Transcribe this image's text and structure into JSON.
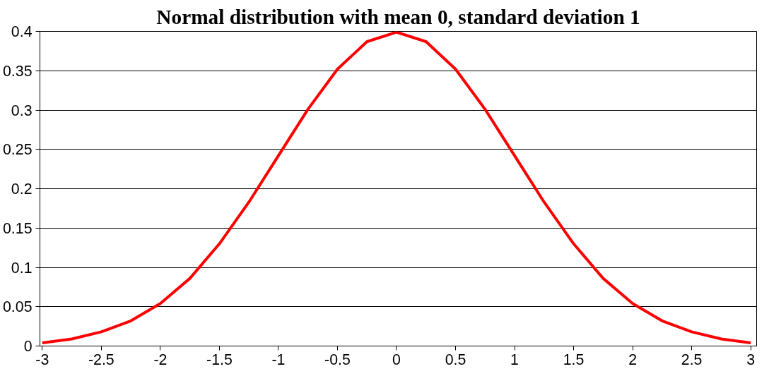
{
  "chart_data": {
    "type": "line",
    "title": "Normal distribution with mean 0, standard deviation 1",
    "x": [
      -3,
      -2.75,
      -2.5,
      -2.25,
      -2,
      -1.75,
      -1.5,
      -1.25,
      -1,
      -0.75,
      -0.5,
      -0.25,
      0,
      0.25,
      0.5,
      0.75,
      1,
      1.25,
      1.5,
      1.75,
      2,
      2.25,
      2.5,
      2.75,
      3
    ],
    "series": [
      {
        "color": "#ff0000",
        "values": [
          0.004,
          0.009,
          0.018,
          0.032,
          0.054,
          0.086,
          0.13,
          0.183,
          0.242,
          0.301,
          0.352,
          0.387,
          0.399,
          0.387,
          0.352,
          0.301,
          0.242,
          0.183,
          0.13,
          0.086,
          0.054,
          0.032,
          0.018,
          0.009,
          0.004
        ]
      }
    ],
    "xlim": [
      -3.02,
      3.05
    ],
    "ylim": [
      0,
      0.4
    ],
    "xticks": [
      -3,
      -2.5,
      -2,
      -1.5,
      -1,
      -0.5,
      0,
      0.5,
      1,
      1.5,
      2,
      2.5,
      3
    ],
    "yticks": [
      0,
      0.05,
      0.1,
      0.15,
      0.2,
      0.25,
      0.3,
      0.35,
      0.4
    ],
    "grid": "y",
    "marker": "none",
    "line_style": "solid"
  }
}
